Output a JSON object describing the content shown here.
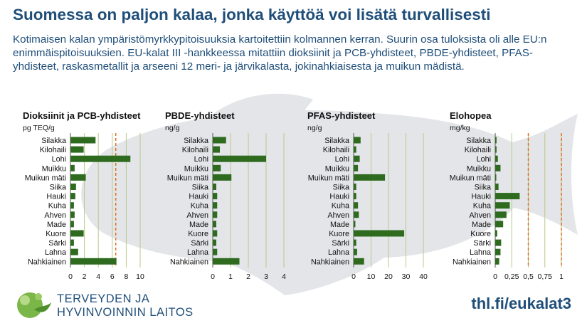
{
  "header": {
    "title": "Suomessa on paljon kalaa, jonka käyttöä voi lisätä turvallisesti",
    "intro": "Kotimaisen kalan ympäristömyrkkypitoisuuksia kartoitettiin kolmannen kerran. Suurin osa tuloksista oli alle EU:n enimmäispitoisuuksien. EU-kalat III -hankkeessa mitattiin dioksiinit ja PCB-yhdisteet, PBDE-yhdisteet, PFAS-yhdisteet, raskasmetallit ja arseeni 12 meri- ja järvikalasta, jokinahkiaisesta ja muikun mädistä."
  },
  "colors": {
    "bar": "#2e6b1f",
    "limit": "#e07020",
    "grid": "#b8c98a",
    "text_blue": "#1f4e79",
    "fish": "#e3e5e8"
  },
  "chart_data": [
    {
      "type": "bar",
      "title": "Dioksiinit ja PCB-yhdisteet",
      "unit": "pg TEQ/g",
      "categories": [
        "Silakka",
        "Kilohaili",
        "Lohi",
        "Muikku",
        "Muikun mäti",
        "Siika",
        "Hauki",
        "Kuha",
        "Ahven",
        "Made",
        "Kuore",
        "Särki",
        "Lahna",
        "Nahkiainen"
      ],
      "values": [
        3.6,
        1.9,
        8.6,
        0.6,
        2.2,
        0.8,
        0.7,
        0.5,
        0.6,
        0.5,
        1.9,
        0.5,
        1.1,
        6.6
      ],
      "xlim": [
        0,
        10
      ],
      "ticks": [
        0,
        2,
        4,
        6,
        8,
        10
      ],
      "tick_labels": [
        "0",
        "2",
        "4",
        "6",
        "8",
        "10"
      ],
      "limit_line": 6.5,
      "orientation": "horizontal",
      "grid": true
    },
    {
      "type": "bar",
      "title": "PBDE-yhdisteet",
      "unit": "ng/g",
      "categories": [
        "Silakka",
        "Kilohaili",
        "Lohi",
        "Muikku",
        "Muikun mäti",
        "Siika",
        "Hauki",
        "Kuha",
        "Ahven",
        "Made",
        "Kuore",
        "Särki",
        "Lahna",
        "Nahkiainen"
      ],
      "values": [
        0.75,
        0.4,
        3.0,
        0.45,
        1.05,
        0.2,
        0.25,
        0.25,
        0.25,
        0.2,
        0.25,
        0.2,
        0.25,
        1.5
      ],
      "xlim": [
        0,
        4
      ],
      "ticks": [
        0,
        1,
        2,
        3,
        4
      ],
      "tick_labels": [
        "0",
        "1",
        "2",
        "3",
        "4"
      ],
      "orientation": "horizontal",
      "grid": true
    },
    {
      "type": "bar",
      "title": "PFAS-yhdisteet",
      "unit": "ng/g",
      "categories": [
        "Silakka",
        "Kilohaili",
        "Lohi",
        "Muikku",
        "Muikun mäti",
        "Siika",
        "Hauki",
        "Kuha",
        "Ahven",
        "Made",
        "Kuore",
        "Särki",
        "Lahna",
        "Nahkiainen"
      ],
      "values": [
        4.0,
        1.5,
        3.5,
        2.5,
        18.0,
        1.5,
        1.5,
        2.5,
        3.0,
        1.0,
        29.0,
        1.5,
        2.0,
        6.0
      ],
      "xlim": [
        0,
        40
      ],
      "ticks": [
        0,
        10,
        20,
        30,
        40
      ],
      "tick_labels": [
        "0",
        "10",
        "20",
        "30",
        "40"
      ],
      "orientation": "horizontal",
      "grid": true
    },
    {
      "type": "bar",
      "title": "Elohopea",
      "unit": "mg/kg",
      "categories": [
        "Silakka",
        "Kilohaili",
        "Lohi",
        "Muikku",
        "Muikun mäti",
        "Siika",
        "Hauki",
        "Kuha",
        "Ahven",
        "Made",
        "Kuore",
        "Särki",
        "Lahna",
        "Nahkiainen"
      ],
      "values": [
        0.02,
        0.02,
        0.04,
        0.08,
        0.01,
        0.05,
        0.37,
        0.22,
        0.17,
        0.12,
        0.03,
        0.09,
        0.08,
        0.06
      ],
      "xlim": [
        0,
        1
      ],
      "ticks": [
        0,
        0.25,
        0.5,
        0.75,
        1
      ],
      "tick_labels": [
        "0",
        "0,25",
        "0,5",
        "0,75",
        "1"
      ],
      "limit_lines": [
        0.5,
        1.0
      ],
      "orientation": "horizontal",
      "grid": true
    }
  ],
  "footer": {
    "org_line1": "TERVEYDEN JA",
    "org_line2": "HYVINVOINNIN LAITOS",
    "url": "thl.fi/eukalat3",
    "logo_icon": "thl-leaf-logo-icon"
  }
}
